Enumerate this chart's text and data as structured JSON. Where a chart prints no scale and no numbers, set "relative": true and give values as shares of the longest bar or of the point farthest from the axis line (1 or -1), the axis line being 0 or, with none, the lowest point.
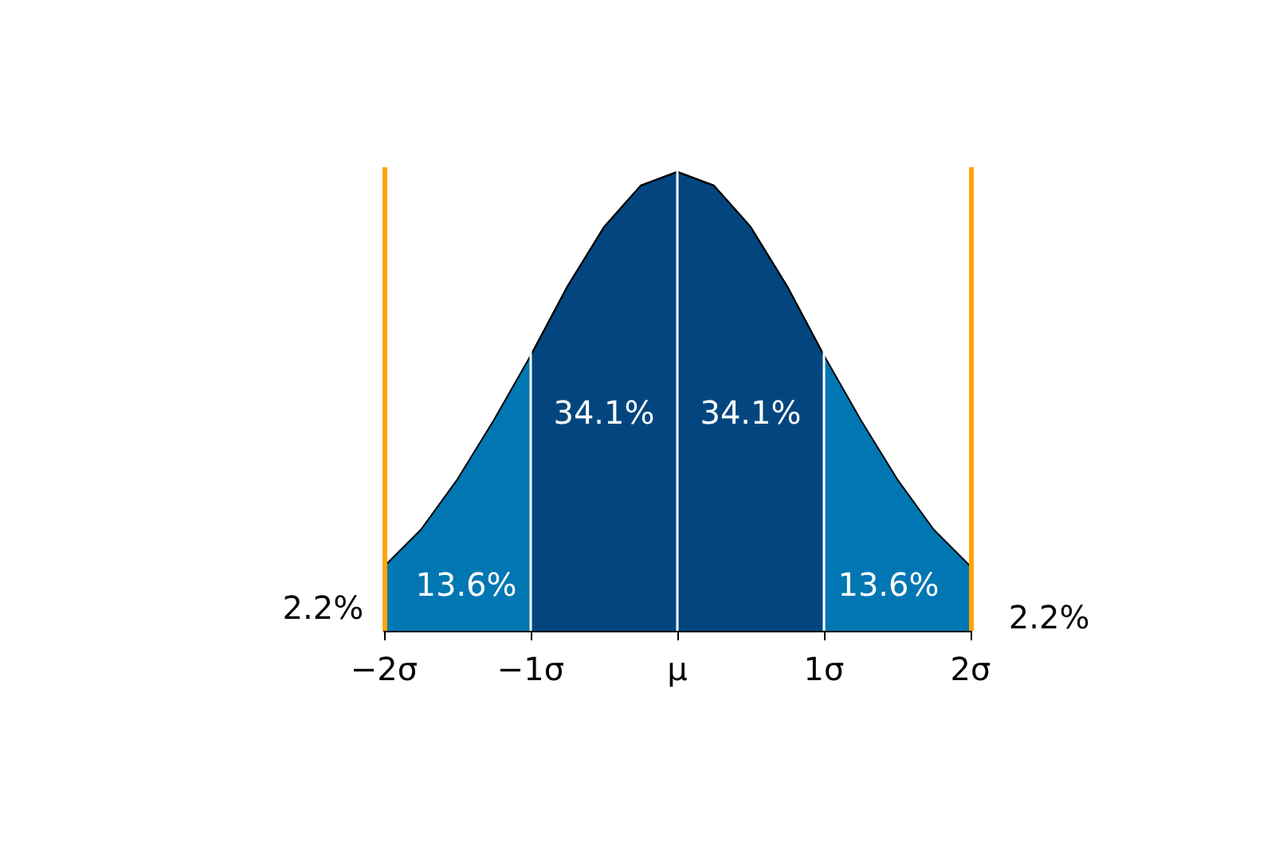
{
  "chart_data": {
    "type": "area",
    "relative": true,
    "grid": false,
    "marker": "none",
    "xlim": [
      -2,
      2
    ],
    "xticks": [
      {
        "value": -2,
        "label": "−2σ"
      },
      {
        "value": -1,
        "label": "−1σ"
      },
      {
        "value": 0,
        "label": "μ"
      },
      {
        "value": 1,
        "label": "1σ"
      },
      {
        "value": 2,
        "label": "2σ"
      }
    ],
    "series": [
      {
        "color": "#0077b3",
        "x": [
          -2,
          -1.75,
          -1.5,
          -1.25,
          -1,
          -0.75,
          -0.5,
          -0.25,
          0,
          0.25,
          0.5,
          0.75,
          1,
          1.25,
          1.5,
          1.75,
          2
        ],
        "values": [
          0.14,
          0.22,
          0.33,
          0.46,
          0.6,
          0.75,
          0.88,
          0.97,
          1,
          0.97,
          0.88,
          0.75,
          0.6,
          0.46,
          0.33,
          0.22,
          0.14
        ]
      },
      {
        "color": "#03467f",
        "x": [
          -1,
          -0.75,
          -0.5,
          -0.25,
          0,
          0.25,
          0.5,
          0.75,
          1
        ],
        "values": [
          0.6,
          0.75,
          0.88,
          0.97,
          1,
          0.97,
          0.88,
          0.75,
          0.6
        ]
      }
    ],
    "ref_lines": [
      {
        "axis": "x",
        "value": -1,
        "color": "#ffffff"
      },
      {
        "axis": "x",
        "value": 0,
        "color": "#ffffff"
      },
      {
        "axis": "x",
        "value": 1,
        "color": "#ffffff"
      },
      {
        "axis": "x",
        "value": -2,
        "color": "#ffa500"
      },
      {
        "axis": "x",
        "value": 2,
        "color": "#ffa500"
      }
    ],
    "annotations": [
      "34.1%",
      "34.1%",
      "13.6%",
      "13.6%",
      "2.2%",
      "2.2%"
    ]
  }
}
